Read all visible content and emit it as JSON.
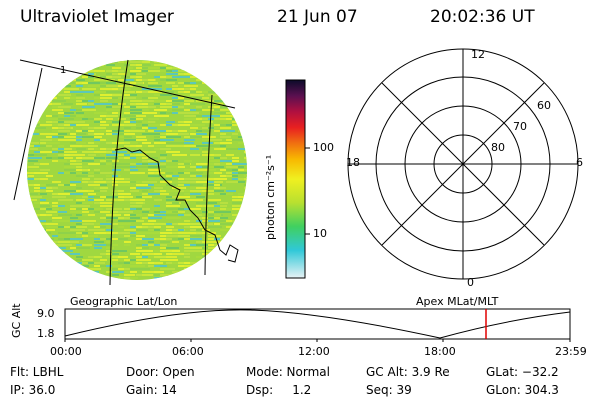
{
  "header": {
    "title": "Ultraviolet Imager",
    "date": "21 Jun 07",
    "time": "20:02:36 UT"
  },
  "colorbar": {
    "unit": "photon cm⁻²s⁻¹",
    "ticks": [
      "100",
      "10"
    ],
    "scale": "log"
  },
  "polar": {
    "mlt_labels": {
      "top": "12",
      "left": "18",
      "right": "6",
      "bottom": "0"
    },
    "lat_labels": [
      "60",
      "70",
      "80"
    ]
  },
  "panel_labels": {
    "left": "Geographic Lat/Lon",
    "right": "Apex MLat/MLT"
  },
  "altitude_plot": {
    "ylabel": "GC Alt",
    "yticks": [
      "9.0",
      "1.8"
    ],
    "xticks": [
      "00:00",
      "06:00",
      "12:00",
      "18:00",
      "23:59"
    ],
    "current_time_marker": "20:02:36"
  },
  "info": {
    "row1": {
      "flt": "Flt: LBHL",
      "door": "Door: Open",
      "mode": "Mode: Normal",
      "gc_alt": "GC Alt: 3.9 Re",
      "glat": "GLat: −32.2"
    },
    "row2": {
      "ip": "IP: 36.0",
      "gain": "Gain: 14",
      "dsp": "Dsp:     1.2",
      "seq": "Seq: 39",
      "glon": "GLon: 304.3"
    }
  },
  "colors": {
    "accent_marker": "#e00000",
    "image_base": "#9bd93a"
  }
}
